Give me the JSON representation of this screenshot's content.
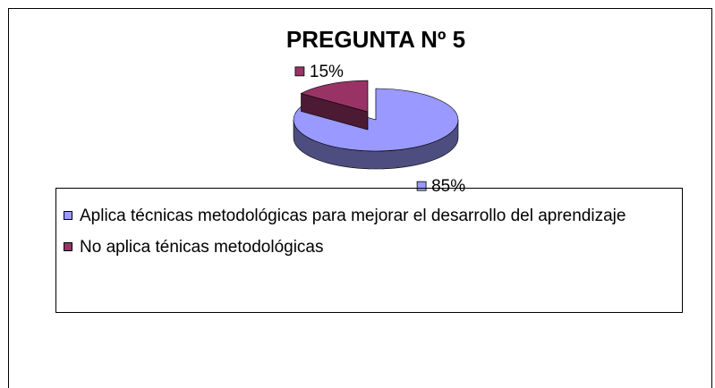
{
  "chart_data": {
    "type": "pie",
    "title": "PREGUNTA Nº 5",
    "categories": [
      "Aplica técnicas metodológicas para mejorar el desarrollo del aprendizaje",
      "No aplica ténicas metodológicas"
    ],
    "values": [
      85,
      15
    ],
    "value_labels": [
      "85%",
      "15%"
    ],
    "colors": [
      "#9999ff",
      "#993366"
    ],
    "legend": "bottom"
  }
}
